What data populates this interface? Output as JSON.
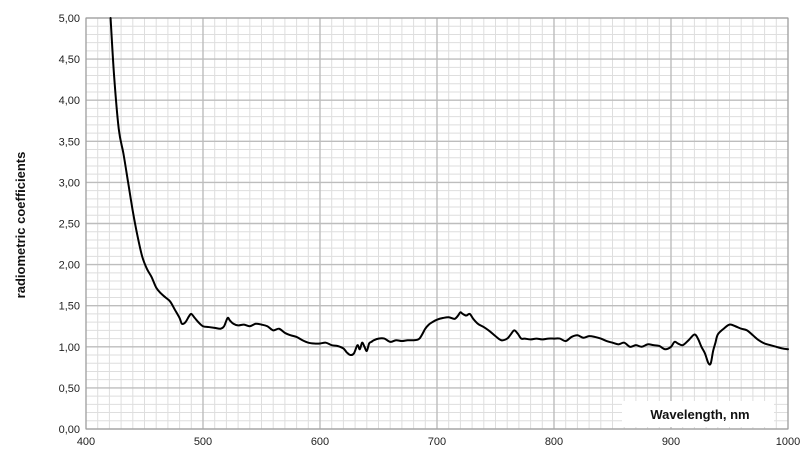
{
  "chart_data": {
    "type": "line",
    "title": "",
    "xlabel": "Wavelength, nm",
    "ylabel": "radiometric coefficients",
    "xlim": [
      400,
      1000
    ],
    "ylim": [
      0,
      5
    ],
    "x_ticks": [
      400,
      500,
      600,
      700,
      800,
      900,
      1000
    ],
    "x_tick_labels": [
      "400",
      "500",
      "600",
      "700",
      "800",
      "900",
      "1000"
    ],
    "y_ticks": [
      0,
      0.5,
      1,
      1.5,
      2,
      2.5,
      3,
      3.5,
      4,
      4.5,
      5
    ],
    "y_tick_labels": [
      "0,00",
      "0,50",
      "1,00",
      "1,50",
      "2,00",
      "2,50",
      "3,00",
      "3,50",
      "4,00",
      "4,50",
      "5,00"
    ],
    "grid": {
      "major": true,
      "minor": true
    },
    "legend": "none",
    "colors": {
      "line": "#000000",
      "major_grid": "#bdbdbd",
      "minor_grid": "#dedede"
    },
    "series": [
      {
        "x": [
          421,
          424,
          428,
          432,
          436,
          440,
          444,
          448,
          452,
          456,
          460,
          464,
          468,
          472,
          476,
          480,
          482,
          485,
          488,
          490,
          493,
          496,
          500,
          505,
          510,
          515,
          518,
          521,
          523,
          526,
          530,
          535,
          540,
          545,
          550,
          555,
          560,
          565,
          570,
          575,
          580,
          585,
          590,
          595,
          600,
          605,
          610,
          615,
          620,
          623,
          626,
          629,
          632,
          634,
          636,
          638,
          640,
          642,
          644,
          646,
          650,
          655,
          660,
          665,
          670,
          675,
          680,
          685,
          690,
          693,
          696,
          700,
          705,
          710,
          715,
          718,
          720,
          722,
          725,
          728,
          731,
          735,
          740,
          745,
          750,
          755,
          760,
          763,
          766,
          769,
          772,
          775,
          780,
          785,
          790,
          795,
          800,
          805,
          810,
          815,
          820,
          825,
          830,
          835,
          840,
          845,
          850,
          855,
          860,
          865,
          870,
          875,
          880,
          885,
          890,
          895,
          900,
          903,
          906,
          910,
          915,
          920,
          923,
          926,
          929,
          932,
          934,
          936,
          938,
          940,
          945,
          950,
          955,
          960,
          965,
          970,
          975,
          980,
          985,
          990,
          995,
          1000
        ],
        "y": [
          5.0,
          4.3,
          3.65,
          3.35,
          3.0,
          2.65,
          2.35,
          2.1,
          1.95,
          1.85,
          1.72,
          1.65,
          1.6,
          1.55,
          1.45,
          1.35,
          1.28,
          1.3,
          1.37,
          1.4,
          1.35,
          1.3,
          1.25,
          1.24,
          1.23,
          1.22,
          1.25,
          1.35,
          1.32,
          1.28,
          1.26,
          1.27,
          1.25,
          1.28,
          1.27,
          1.25,
          1.2,
          1.22,
          1.17,
          1.14,
          1.12,
          1.08,
          1.05,
          1.04,
          1.04,
          1.05,
          1.02,
          1.01,
          0.98,
          0.93,
          0.9,
          0.92,
          1.02,
          0.97,
          1.05,
          1.0,
          0.95,
          1.04,
          1.06,
          1.08,
          1.1,
          1.1,
          1.06,
          1.08,
          1.07,
          1.08,
          1.08,
          1.1,
          1.22,
          1.27,
          1.3,
          1.33,
          1.35,
          1.36,
          1.34,
          1.38,
          1.42,
          1.4,
          1.38,
          1.4,
          1.34,
          1.28,
          1.24,
          1.19,
          1.13,
          1.08,
          1.1,
          1.15,
          1.2,
          1.16,
          1.1,
          1.1,
          1.09,
          1.1,
          1.09,
          1.1,
          1.1,
          1.1,
          1.07,
          1.12,
          1.14,
          1.11,
          1.13,
          1.12,
          1.1,
          1.07,
          1.05,
          1.03,
          1.05,
          1.0,
          1.02,
          1.0,
          1.03,
          1.02,
          1.01,
          0.97,
          1.0,
          1.06,
          1.04,
          1.02,
          1.08,
          1.15,
          1.1,
          1.0,
          0.92,
          0.8,
          0.8,
          0.95,
          1.05,
          1.15,
          1.22,
          1.27,
          1.25,
          1.22,
          1.2,
          1.14,
          1.08,
          1.04,
          1.02,
          1.0,
          0.98,
          0.97
        ]
      }
    ]
  }
}
